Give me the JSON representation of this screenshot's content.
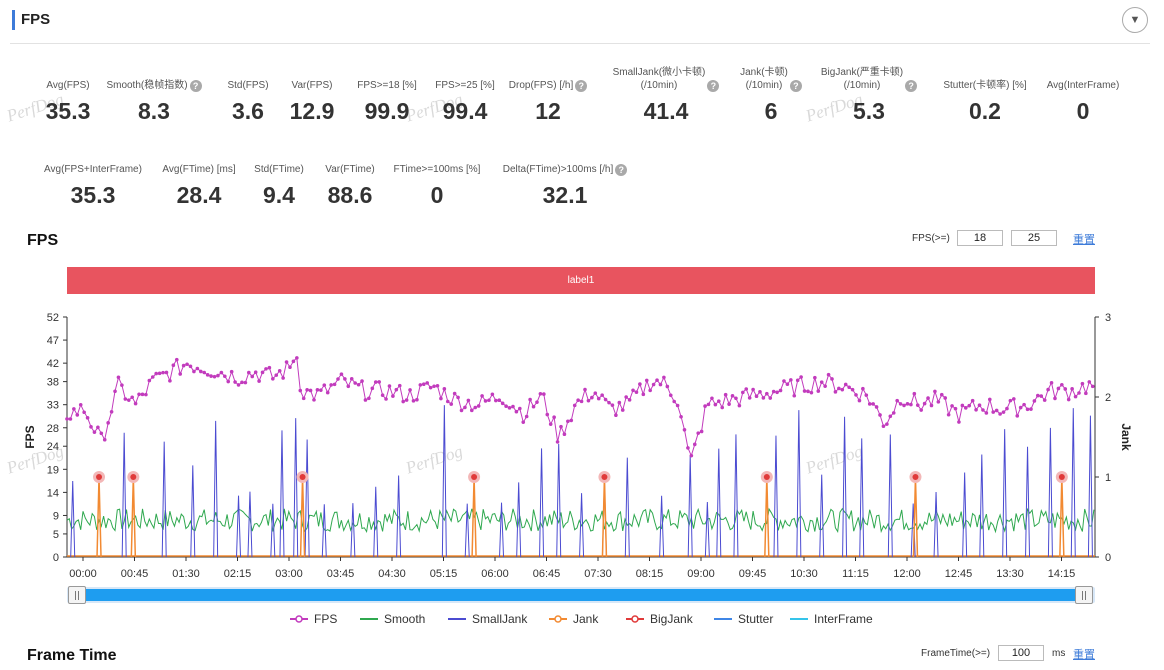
{
  "panel": {
    "title": "FPS"
  },
  "metrics_row1": [
    {
      "label": "Avg(FPS)",
      "value": "35.3",
      "help": false
    },
    {
      "label": "Smooth(稳帧指数)",
      "value": "8.3",
      "help": true
    },
    {
      "label": "Std(FPS)",
      "value": "3.6",
      "help": false
    },
    {
      "label": "Var(FPS)",
      "value": "12.9",
      "help": false
    },
    {
      "label": "FPS>=18 [%]",
      "value": "99.9",
      "help": false
    },
    {
      "label": "FPS>=25 [%]",
      "value": "99.4",
      "help": false
    },
    {
      "label": "Drop(FPS) [/h]",
      "value": "12",
      "help": true
    },
    {
      "label": "SmallJank(微小卡顿)\n(/10min)",
      "value": "41.4",
      "help": true
    },
    {
      "label": "Jank(卡顿)\n(/10min)",
      "value": "6",
      "help": true
    },
    {
      "label": "BigJank(严重卡顿)\n(/10min)",
      "value": "5.3",
      "help": true
    },
    {
      "label": "Stutter(卡顿率) [%]",
      "value": "0.2",
      "help": false
    },
    {
      "label": "Avg(InterFrame)",
      "value": "0",
      "help": false
    }
  ],
  "metrics_row2": [
    {
      "label": "Avg(FPS+InterFrame)",
      "value": "35.3",
      "help": false
    },
    {
      "label": "Avg(FTime) [ms]",
      "value": "28.4",
      "help": false
    },
    {
      "label": "Std(FTime)",
      "value": "9.4",
      "help": false
    },
    {
      "label": "Var(FTime)",
      "value": "88.6",
      "help": false
    },
    {
      "label": "FTime>=100ms [%]",
      "value": "0",
      "help": false
    },
    {
      "label": "Delta(FTime)>100ms [/h]",
      "value": "32.1",
      "help": true
    }
  ],
  "fps_section": {
    "title": "FPS",
    "threshold_label": "FPS(>=)",
    "threshold_1": "18",
    "threshold_2": "25",
    "reset_label": "重置",
    "label_band": "label1"
  },
  "watermark_text": "PerfDog",
  "chart_data": {
    "type": "line",
    "y_left_label": "FPS",
    "y_right_label": "Jank",
    "y_left_ticks": [
      0,
      5,
      9,
      14,
      19,
      24,
      28,
      33,
      38,
      42,
      47,
      52
    ],
    "y_left_range": [
      0,
      52
    ],
    "y_right_ticks": [
      0,
      1,
      2,
      3
    ],
    "y_right_range": [
      0,
      3
    ],
    "x_ticks": [
      "00:00",
      "00:45",
      "01:30",
      "02:15",
      "03:00",
      "03:45",
      "04:30",
      "05:15",
      "06:00",
      "06:45",
      "07:30",
      "08:15",
      "09:00",
      "09:45",
      "10:30",
      "11:15",
      "12:00",
      "12:45",
      "13:30",
      "14:15"
    ],
    "x_range_seconds": [
      0,
      899
    ],
    "series": [
      {
        "name": "FPS",
        "axis": "left",
        "color": "#c23bbd",
        "points": [
          [
            0,
            31
          ],
          [
            15,
            32
          ],
          [
            30,
            25
          ],
          [
            45,
            37
          ],
          [
            60,
            33
          ],
          [
            75,
            38
          ],
          [
            90,
            40
          ],
          [
            105,
            42
          ],
          [
            120,
            41
          ],
          [
            135,
            40
          ],
          [
            150,
            39
          ],
          [
            165,
            40
          ],
          [
            180,
            39
          ],
          [
            195,
            41
          ],
          [
            200,
            45
          ],
          [
            205,
            36
          ],
          [
            220,
            35
          ],
          [
            240,
            38
          ],
          [
            260,
            36
          ],
          [
            280,
            36
          ],
          [
            300,
            35
          ],
          [
            320,
            37
          ],
          [
            340,
            34
          ],
          [
            360,
            33
          ],
          [
            380,
            35
          ],
          [
            400,
            31
          ],
          [
            415,
            35
          ],
          [
            430,
            26
          ],
          [
            445,
            33
          ],
          [
            460,
            36
          ],
          [
            475,
            32
          ],
          [
            490,
            33
          ],
          [
            510,
            38
          ],
          [
            520,
            38
          ],
          [
            535,
            34
          ],
          [
            545,
            20
          ],
          [
            560,
            33
          ],
          [
            580,
            34
          ],
          [
            600,
            35
          ],
          [
            620,
            36
          ],
          [
            640,
            37
          ],
          [
            660,
            38
          ],
          [
            680,
            37
          ],
          [
            700,
            35
          ],
          [
            715,
            29
          ],
          [
            730,
            35
          ],
          [
            745,
            33
          ],
          [
            760,
            34
          ],
          [
            780,
            31
          ],
          [
            800,
            33
          ],
          [
            820,
            32
          ],
          [
            840,
            33
          ],
          [
            860,
            36
          ],
          [
            880,
            36
          ],
          [
            890,
            37
          ],
          [
            899,
            37
          ]
        ]
      },
      {
        "name": "Smooth",
        "axis": "left",
        "color": "#2fa84f",
        "mean": 8
      },
      {
        "name": "SmallJank",
        "axis": "right",
        "color": "#4b4bd1",
        "x_seconds": [
          5,
          50,
          85,
          110,
          130,
          150,
          160,
          180,
          188,
          200,
          210,
          225,
          250,
          270,
          290,
          330,
          350,
          380,
          395,
          415,
          430,
          450,
          470,
          490,
          520,
          545,
          560,
          570,
          585,
          620,
          640,
          660,
          680,
          695,
          720,
          740,
          760,
          785,
          800,
          820,
          840,
          860,
          880,
          895
        ]
      },
      {
        "name": "Jank",
        "axis": "right",
        "color": "#f28a32",
        "x_seconds": [
          28,
          58,
          206,
          356,
          470,
          612,
          742,
          870
        ]
      },
      {
        "name": "BigJank",
        "axis": "right",
        "color": "#e03a3a",
        "x_seconds": [
          28,
          58,
          206,
          356,
          470,
          612,
          742,
          870
        ]
      },
      {
        "name": "Stutter",
        "axis": "right",
        "color": "#3f86e6"
      },
      {
        "name": "InterFrame",
        "axis": "right",
        "color": "#35c4ea"
      }
    ]
  },
  "legend": [
    {
      "name": "FPS",
      "color": "#c23bbd",
      "marker": "circle"
    },
    {
      "name": "Smooth",
      "color": "#2fa84f",
      "marker": "line"
    },
    {
      "name": "SmallJank",
      "color": "#4b4bd1",
      "marker": "line"
    },
    {
      "name": "Jank",
      "color": "#f28a32",
      "marker": "circle"
    },
    {
      "name": "BigJank",
      "color": "#e03a3a",
      "marker": "circle"
    },
    {
      "name": "Stutter",
      "color": "#3f86e6",
      "marker": "line"
    },
    {
      "name": "InterFrame",
      "color": "#35c4ea",
      "marker": "line"
    }
  ],
  "frame_time_section": {
    "title": "Frame Time",
    "threshold_label": "FrameTime(>=)",
    "threshold_value": "100",
    "unit": "ms",
    "reset_label": "重置"
  }
}
